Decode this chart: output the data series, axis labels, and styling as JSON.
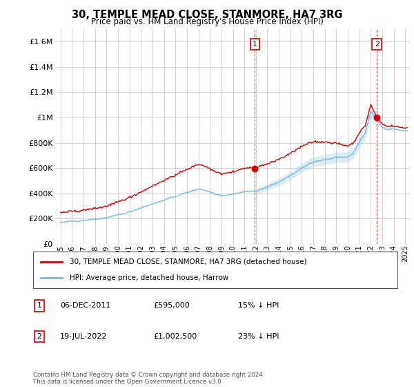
{
  "title": "30, TEMPLE MEAD CLOSE, STANMORE, HA7 3RG",
  "subtitle": "Price paid vs. HM Land Registry's House Price Index (HPI)",
  "legend_entry1": "30, TEMPLE MEAD CLOSE, STANMORE, HA7 3RG (detached house)",
  "legend_entry2": "HPI: Average price, detached house, Harrow",
  "annotation1": {
    "label": "1",
    "date": "06-DEC-2011",
    "price": "£595,000",
    "note": "15% ↓ HPI"
  },
  "annotation2": {
    "label": "2",
    "date": "19-JUL-2022",
    "price": "£1,002,500",
    "note": "23% ↓ HPI"
  },
  "footer": "Contains HM Land Registry data © Crown copyright and database right 2024.\nThis data is licensed under the Open Government Licence v3.0.",
  "hpi_color": "#7ab8d9",
  "price_color": "#cc0000",
  "background_color": "#ffffff",
  "grid_color": "#cccccc",
  "ylim": [
    0,
    1700000
  ],
  "yticks": [
    0,
    200000,
    400000,
    600000,
    800000,
    1000000,
    1200000,
    1400000,
    1600000
  ],
  "sale1_year": 2011.92,
  "sale1_value": 595000,
  "sale2_year": 2022.54,
  "sale2_value": 1002500,
  "sale_labels": [
    "1",
    "2"
  ]
}
